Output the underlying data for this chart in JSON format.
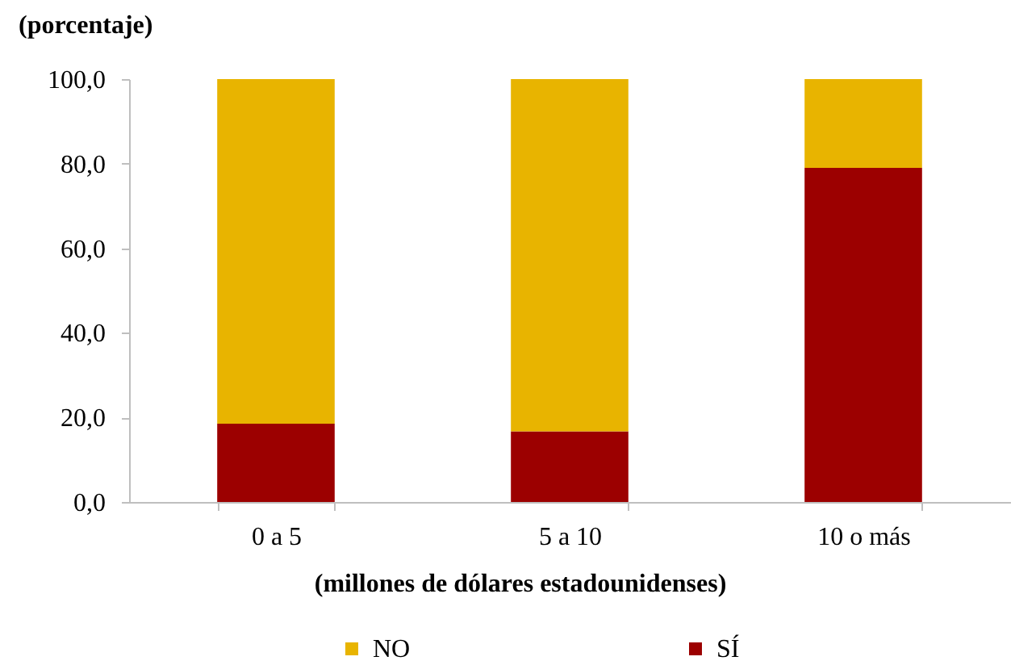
{
  "chart_data": {
    "type": "bar",
    "stacked": true,
    "ylabel": "(porcentaje)",
    "xlabel": "(millones de dólares estadounidenses)",
    "categories": [
      "0 a 5",
      "5 a 10",
      "10 o más"
    ],
    "series": [
      {
        "name": "SÍ",
        "color": "#9c0000",
        "values": [
          18.5,
          16.7,
          79.0
        ]
      },
      {
        "name": "NO",
        "color": "#e8b400",
        "values": [
          81.5,
          83.3,
          21.0
        ]
      }
    ],
    "ylim": [
      0,
      100
    ],
    "yticks": [
      {
        "value": 0,
        "label": "0,0"
      },
      {
        "value": 20,
        "label": "20,0"
      },
      {
        "value": 40,
        "label": "40,0"
      },
      {
        "value": 60,
        "label": "60,0"
      },
      {
        "value": 80,
        "label": "80,0"
      },
      {
        "value": 100,
        "label": "100,0"
      }
    ],
    "grid": false,
    "legend": "bottom"
  }
}
